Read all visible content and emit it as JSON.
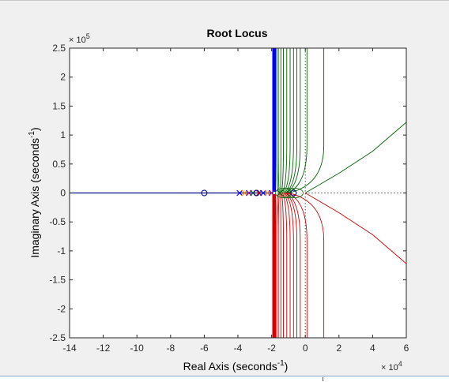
{
  "window": {
    "background": "#f0f0f0"
  },
  "chart_data": {
    "type": "line",
    "title": "Root Locus",
    "xlabel": {
      "main": "Real Axis (seconds",
      "sup": "-1",
      "close": ")"
    },
    "ylabel": {
      "main": "Imaginary Axis (seconds",
      "sup": "-1",
      "close": ")"
    },
    "x_multiplier": {
      "base": "× 10",
      "exp": "4"
    },
    "y_multiplier": {
      "base": "× 10",
      "exp": "5"
    },
    "xlim": [
      -14,
      6
    ],
    "ylim": [
      -2.5,
      2.5
    ],
    "x_ticks": [
      -14,
      -12,
      -10,
      -8,
      -6,
      -4,
      -2,
      0,
      2,
      4,
      6
    ],
    "x_tick_labels": [
      "-14",
      "-12",
      "-10",
      "-8",
      "-6",
      "-4",
      "-2",
      "0",
      "2",
      "4",
      "6"
    ],
    "y_ticks": [
      2.5,
      2,
      1.5,
      1,
      0.5,
      0,
      -0.5,
      -1,
      -1.5,
      -2,
      -2.5
    ],
    "y_tick_labels": [
      "2.5",
      "2",
      "1.5",
      "1",
      "0.5",
      "0",
      "-0.5",
      "-1",
      "-1.5",
      "-2",
      "-2.5"
    ],
    "grid": false,
    "colors": {
      "real_axis": "#00008b",
      "blue": "#0000ff",
      "green": "#006400",
      "red": "#d40000",
      "zero_marker": "#00008b",
      "ref_lines": "#555555"
    },
    "series": [
      {
        "color": "blue",
        "kind": "vertical-branches",
        "x": [
          -1.9,
          -1.85,
          -1.8
        ],
        "from_y": 0.02,
        "to_y": 2.5
      },
      {
        "color": "green",
        "kind": "upper-branches",
        "x": [
          -1.7,
          -1.6,
          -1.45,
          -1.3,
          -1.1,
          -0.9,
          -0.7,
          -0.5,
          -0.3,
          0.1,
          1.1
        ]
      },
      {
        "color": "red",
        "kind": "lower-branches",
        "x": [
          -1.7,
          -1.6,
          -1.45,
          -1.3,
          -1.1,
          -0.9,
          -0.7,
          -0.5,
          -0.3,
          0.1,
          1.1
        ]
      },
      {
        "color": "green",
        "kind": "asymptote",
        "points": [
          [
            0,
            0
          ],
          [
            2,
            0.34
          ],
          [
            4,
            0.72
          ],
          [
            6,
            1.22
          ]
        ]
      },
      {
        "color": "red",
        "kind": "asymptote",
        "points": [
          [
            0,
            0
          ],
          [
            2,
            -0.34
          ],
          [
            4,
            -0.72
          ],
          [
            6,
            -1.22
          ]
        ]
      }
    ],
    "zeros": [
      [
        -6,
        0
      ],
      [
        -2.9,
        0
      ],
      [
        -0.7,
        0
      ]
    ],
    "poles": [
      [
        -3.9,
        0
      ],
      [
        -3.6,
        0
      ],
      [
        -3.35,
        0
      ],
      [
        -3.1,
        0
      ],
      [
        -2.75,
        0
      ],
      [
        -2.5,
        0
      ],
      [
        -2.25,
        0
      ],
      [
        -2.0,
        0
      ],
      [
        -1.5,
        0
      ]
    ],
    "reference_lines": {
      "x": 0,
      "y": 0,
      "style": "dotted"
    }
  }
}
